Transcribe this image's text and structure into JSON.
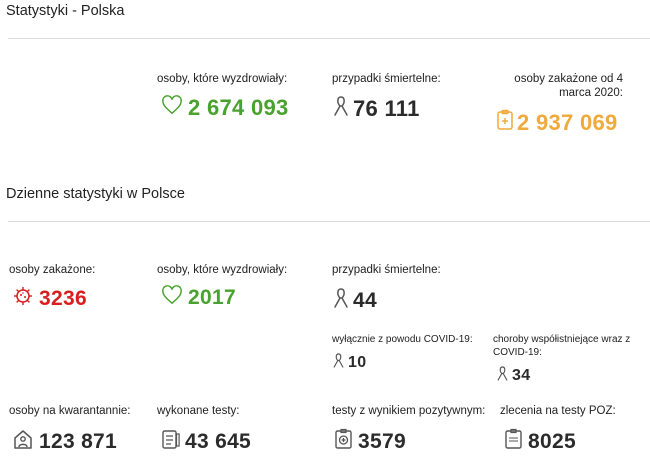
{
  "colors": {
    "green": "#48a22d",
    "orange": "#f0a93a",
    "red": "#d81e1e",
    "dark": "#2b2b2b"
  },
  "overall": {
    "title": "Statystyki - Polska",
    "recovered": {
      "label": "osoby, które wyzdrowiały:",
      "value": "2 674 093",
      "icon": "heart-icon"
    },
    "deaths": {
      "label": "przypadki śmiertelne:",
      "value": "76 111",
      "icon": "ribbon-icon"
    },
    "infected": {
      "label": "osoby zakażone od 4 marca 2020:",
      "value": "2 937 069",
      "icon": "clipboard-icon"
    }
  },
  "daily": {
    "title": "Dzienne statystyki w Polsce",
    "infected": {
      "label": "osoby zakażone:",
      "value": "3236",
      "icon": "virus-icon"
    },
    "recovered": {
      "label": "osoby, które wyzdrowiały:",
      "value": "2017",
      "icon": "heart-icon"
    },
    "deaths": {
      "label": "przypadki śmiertelne:",
      "value": "44",
      "icon": "ribbon-icon"
    },
    "deaths_covid_only": {
      "label": "wyłącznie z powodu COVID-19:",
      "value": "10",
      "icon": "ribbon-icon"
    },
    "deaths_comorbid": {
      "label": "choroby współistniejące wraz z COVID-19:",
      "value": "34",
      "icon": "ribbon-icon"
    },
    "quarantine": {
      "label": "osoby na kwarantannie:",
      "value": "123 871",
      "icon": "house-person-icon"
    },
    "tests": {
      "label": "wykonane testy:",
      "value": "43 645",
      "icon": "checklist-icon"
    },
    "positive_tests": {
      "label": "testy z wynikiem pozytywnym:",
      "value": "3579",
      "icon": "positive-test-icon"
    },
    "poz_orders": {
      "label": "zlecenia na testy POZ:",
      "value": "8025",
      "icon": "poz-icon"
    }
  }
}
